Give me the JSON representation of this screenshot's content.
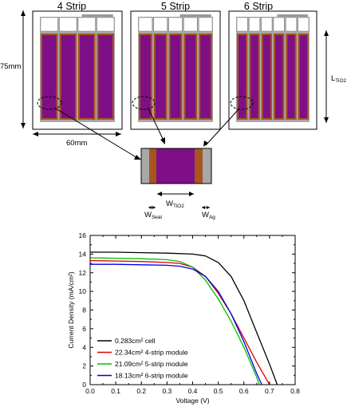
{
  "schematic": {
    "panel_titles": [
      "4 Strip",
      "5 Strip",
      "6 Strip"
    ],
    "strip_counts": [
      4,
      5,
      6
    ],
    "height_label": "75mm",
    "width_label": "60mm",
    "length_label": "L",
    "length_sub": "TiO2",
    "detail": {
      "w_tio2": "W",
      "w_tio2_sub": "TiO2",
      "w_seal": "W",
      "w_seal_sub": "Seal",
      "w_ag": "W",
      "w_ag_sub": "Ag"
    },
    "colors": {
      "tio2": "#7f0f87",
      "seal": "#a8541f",
      "silver": "#a8a8a8",
      "frame": "#000000"
    }
  },
  "chart_data": {
    "type": "line",
    "xlabel": "Voltage (V)",
    "ylabel": "Current Density (mA/cm²)",
    "xlim": [
      0.0,
      0.8
    ],
    "ylim": [
      0,
      16
    ],
    "xticks": [
      "0.0",
      "0.1",
      "0.2",
      "0.3",
      "0.4",
      "0.5",
      "0.6",
      "0.7",
      "0.8"
    ],
    "yticks": [
      "0",
      "2",
      "4",
      "6",
      "8",
      "10",
      "12",
      "14",
      "16"
    ],
    "grid": false,
    "legend_position": "bottom-left",
    "series": [
      {
        "name": "0.283cm² cell",
        "color": "#000000",
        "x": [
          0.0,
          0.1,
          0.2,
          0.3,
          0.4,
          0.45,
          0.5,
          0.55,
          0.6,
          0.65,
          0.7,
          0.73
        ],
        "y": [
          14.2,
          14.2,
          14.15,
          14.1,
          14.0,
          13.8,
          13.1,
          11.6,
          9.0,
          5.6,
          2.2,
          0.0
        ]
      },
      {
        "name": "22.34cm² 4-strip module",
        "color": "#e00000",
        "x": [
          0.0,
          0.1,
          0.2,
          0.3,
          0.35,
          0.4,
          0.45,
          0.5,
          0.55,
          0.6,
          0.65,
          0.7
        ],
        "y": [
          13.3,
          13.25,
          13.2,
          13.1,
          13.0,
          12.6,
          11.6,
          9.8,
          7.6,
          5.0,
          2.4,
          0.0
        ]
      },
      {
        "name": "21.09cm² 5-strip module",
        "color": "#00c000",
        "x": [
          0.0,
          0.1,
          0.2,
          0.3,
          0.35,
          0.4,
          0.45,
          0.5,
          0.55,
          0.6,
          0.65,
          0.66
        ],
        "y": [
          13.6,
          13.55,
          13.5,
          13.4,
          13.2,
          12.6,
          11.2,
          9.2,
          6.8,
          4.0,
          0.8,
          0.0
        ]
      },
      {
        "name": "18.13cm² 6-strip module",
        "color": "#0000e0",
        "x": [
          0.0,
          0.1,
          0.2,
          0.3,
          0.35,
          0.4,
          0.45,
          0.5,
          0.55,
          0.6,
          0.65,
          0.67
        ],
        "y": [
          12.9,
          12.9,
          12.85,
          12.8,
          12.7,
          12.4,
          11.6,
          10.0,
          7.6,
          4.6,
          1.2,
          0.0
        ]
      }
    ]
  }
}
